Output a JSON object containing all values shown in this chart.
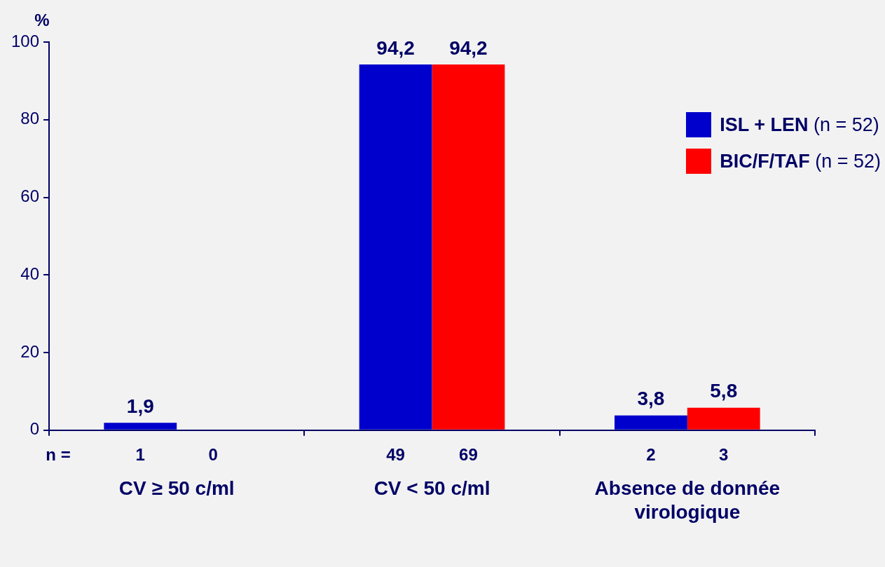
{
  "chart_data": {
    "type": "bar",
    "ylabel": "%",
    "categories": [
      "CV ≥ 50 c/ml",
      "CV < 50 c/ml",
      "Absence de donnée virologique"
    ],
    "series": [
      {
        "name": "ISL + LEN (n = 52)",
        "color": "#0000cc",
        "values": [
          1.9,
          94.2,
          3.8
        ],
        "value_labels": [
          "1,9",
          "94,2",
          "3,8"
        ]
      },
      {
        "name": "BIC/F/TAF (n = 52)",
        "color": "#ff0000",
        "values": [
          0,
          94.2,
          5.8
        ],
        "value_labels": [
          null,
          "94,2",
          "5,8"
        ]
      }
    ],
    "annotations": [
      "n =",
      "1",
      "0",
      "49",
      "69",
      "2",
      "3"
    ],
    "ylim": [
      0,
      100
    ],
    "yticks": [
      0,
      20,
      40,
      60,
      80,
      100
    ],
    "grid": false,
    "legend": "top right"
  }
}
